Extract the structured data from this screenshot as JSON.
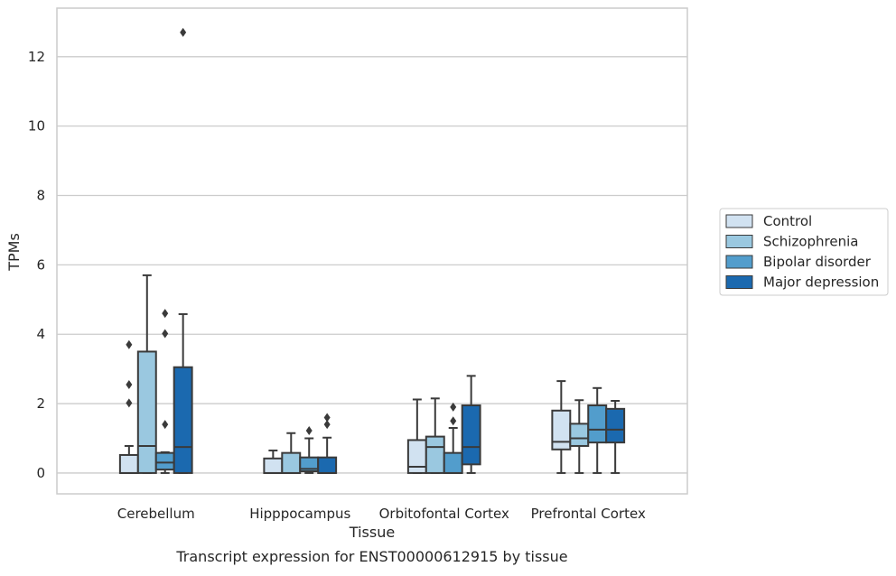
{
  "chart_data": {
    "type": "box",
    "title": "",
    "caption": "Transcript expression for ENST00000612915 by tissue",
    "xlabel": "Tissue",
    "ylabel": "TPMs",
    "ylim": [
      -0.6,
      13.4
    ],
    "yticks": [
      0,
      2,
      4,
      6,
      8,
      10,
      12
    ],
    "grid": "horizontal",
    "legend_position": "right",
    "categories": [
      "Cerebellum",
      "Hipppocampus",
      "Orbitofontal Cortex",
      "Prefrontal Cortex"
    ],
    "series": [
      {
        "name": "Control",
        "color": "#d1e2f1",
        "boxes": [
          {
            "whisker_low": 0,
            "q1": 0,
            "median": 0,
            "q3": 0.52,
            "whisker_high": 0.78,
            "outliers": []
          },
          {
            "whisker_low": 0,
            "q1": 0,
            "median": 0,
            "q3": 0.42,
            "whisker_high": 0.65,
            "outliers": []
          },
          {
            "whisker_low": 0,
            "q1": 0,
            "median": 0.18,
            "q3": 0.95,
            "whisker_high": 2.12,
            "outliers": []
          },
          {
            "whisker_low": 0,
            "q1": 0.68,
            "median": 0.9,
            "q3": 1.8,
            "whisker_high": 2.65,
            "outliers": []
          }
        ]
      },
      {
        "name": "Schizophrenia",
        "color": "#9ac8e0",
        "boxes": [
          {
            "whisker_low": 0,
            "q1": 0,
            "median": 0.78,
            "q3": 3.5,
            "whisker_high": 5.7,
            "outliers": []
          },
          {
            "whisker_low": 0,
            "q1": 0,
            "median": 0,
            "q3": 0.58,
            "whisker_high": 1.15,
            "outliers": []
          },
          {
            "whisker_low": 0,
            "q1": 0,
            "median": 0.75,
            "q3": 1.05,
            "whisker_high": 2.15,
            "outliers": []
          },
          {
            "whisker_low": 0,
            "q1": 0.78,
            "median": 1.0,
            "q3": 1.42,
            "whisker_high": 2.1,
            "outliers": []
          }
        ]
      },
      {
        "name": "Bipolar disorder",
        "color": "#529dcc",
        "boxes": [
          {
            "whisker_low": 0,
            "q1": 0.1,
            "median": 0.3,
            "q3": 0.58,
            "whisker_high": 0.6,
            "outliers": [
              1.4,
              4.02,
              4.6
            ]
          },
          {
            "whisker_low": 0,
            "q1": 0.05,
            "median": 0.12,
            "q3": 0.45,
            "whisker_high": 1.0,
            "outliers": [
              1.22
            ]
          },
          {
            "whisker_low": 0,
            "q1": 0,
            "median": 0,
            "q3": 0.58,
            "whisker_high": 1.3,
            "outliers": [
              1.5,
              1.9
            ]
          },
          {
            "whisker_low": 0,
            "q1": 0.88,
            "median": 1.25,
            "q3": 1.95,
            "whisker_high": 2.45,
            "outliers": []
          }
        ]
      },
      {
        "name": "Major depression",
        "color": "#1b69af",
        "boxes": [
          {
            "whisker_low": 0,
            "q1": 0,
            "median": 0.75,
            "q3": 3.05,
            "whisker_high": 4.58,
            "outliers": [
              12.7
            ]
          },
          {
            "whisker_low": 0,
            "q1": 0,
            "median": 0,
            "q3": 0.45,
            "whisker_high": 1.02,
            "outliers": [
              1.4,
              1.6
            ]
          },
          {
            "whisker_low": 0,
            "q1": 0.25,
            "median": 0.75,
            "q3": 1.95,
            "whisker_high": 2.8,
            "outliers": []
          },
          {
            "whisker_low": 0,
            "q1": 0.88,
            "median": 1.25,
            "q3": 1.85,
            "whisker_high": 2.08,
            "outliers": []
          }
        ]
      }
    ],
    "fliers_from_cerebellum_control": [
      2.02,
      2.55,
      3.7
    ]
  }
}
